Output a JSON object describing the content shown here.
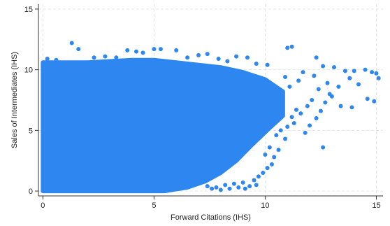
{
  "chart_data": {
    "type": "scatter",
    "xlabel": "Forward Citations (IHS)",
    "ylabel": "Sales of Intermediates (IHS)",
    "xlim": [
      -0.2,
      15.3
    ],
    "ylim": [
      -0.4,
      15.4
    ],
    "x_ticks": [
      0,
      5,
      10,
      15
    ],
    "y_ticks": [
      0,
      5,
      10,
      15
    ],
    "x_tick_labels": [
      "0",
      "5",
      "10",
      "15"
    ],
    "y_tick_labels": [
      "0",
      "5",
      "10",
      "15"
    ],
    "grid": true,
    "marker_color": "#2E86F0",
    "dense_region": {
      "description": "",
      "upper_envelope": [
        [
          0,
          10.6
        ],
        [
          1,
          10.6
        ],
        [
          2,
          10.6
        ],
        [
          3,
          10.7
        ],
        [
          4,
          10.8
        ],
        [
          5,
          10.8
        ],
        [
          6,
          10.6
        ],
        [
          7,
          10.4
        ],
        [
          8,
          10.2
        ],
        [
          9,
          9.8
        ],
        [
          10,
          9.2
        ],
        [
          10.8,
          8.2
        ]
      ],
      "lower_envelope": [
        [
          0,
          0
        ],
        [
          4,
          0
        ],
        [
          5.5,
          0
        ],
        [
          6.5,
          0.3
        ],
        [
          7.3,
          0.8
        ],
        [
          8,
          1.5
        ],
        [
          8.7,
          2.5
        ],
        [
          9.4,
          3.8
        ],
        [
          10.2,
          5.2
        ],
        [
          10.8,
          6.2
        ],
        [
          10.8,
          8.2
        ]
      ]
    },
    "points": [
      [
        1.3,
        12.2
      ],
      [
        1.6,
        11.7
      ],
      [
        3.8,
        11.6
      ],
      [
        4.2,
        11.5
      ],
      [
        4.5,
        11.4
      ],
      [
        5.0,
        11.7
      ],
      [
        5.3,
        11.7
      ],
      [
        6.0,
        11.6
      ],
      [
        7.0,
        11.2
      ],
      [
        7.4,
        11.3
      ],
      [
        8.7,
        11.1
      ],
      [
        9.2,
        11.0
      ],
      [
        11.0,
        11.8
      ],
      [
        11.2,
        11.9
      ],
      [
        12.3,
        11.0
      ],
      [
        12.6,
        10.3
      ],
      [
        13.1,
        10.2
      ],
      [
        13.6,
        9.9
      ],
      [
        14.0,
        9.9
      ],
      [
        14.5,
        10.0
      ],
      [
        14.8,
        9.8
      ],
      [
        15.0,
        9.7
      ],
      [
        15.1,
        9.3
      ],
      [
        14.9,
        7.4
      ],
      [
        14.6,
        7.6
      ],
      [
        13.3,
        8.6
      ],
      [
        12.9,
        8.0
      ],
      [
        12.7,
        7.3
      ],
      [
        12.5,
        6.6
      ],
      [
        12.3,
        6.0
      ],
      [
        12.0,
        5.4
      ],
      [
        11.8,
        4.8
      ],
      [
        12.6,
        3.6
      ],
      [
        11.4,
        6.7
      ],
      [
        11.2,
        6.1
      ],
      [
        11.0,
        5.3
      ],
      [
        10.9,
        4.3
      ],
      [
        10.6,
        3.4
      ],
      [
        10.4,
        2.8
      ],
      [
        10.3,
        2.2
      ],
      [
        10.1,
        1.9
      ],
      [
        9.9,
        1.5
      ],
      [
        9.7,
        1.2
      ],
      [
        9.5,
        0.9
      ],
      [
        9.6,
        0.5
      ],
      [
        9.3,
        0.4
      ],
      [
        9.1,
        0.2
      ],
      [
        9.0,
        0.7
      ],
      [
        8.8,
        0.3
      ],
      [
        8.6,
        0.6
      ],
      [
        8.4,
        0.2
      ],
      [
        8.2,
        0.5
      ],
      [
        8.0,
        0.1
      ],
      [
        7.8,
        0.3
      ],
      [
        7.6,
        0.2
      ],
      [
        7.4,
        0.4
      ],
      [
        10.0,
        3.0
      ],
      [
        10.2,
        3.6
      ],
      [
        10.5,
        4.6
      ],
      [
        10.7,
        5.0
      ],
      [
        11.3,
        5.6
      ],
      [
        11.6,
        6.4
      ],
      [
        11.9,
        7.0
      ],
      [
        12.1,
        7.5
      ],
      [
        12.4,
        8.4
      ],
      [
        12.8,
        8.9
      ],
      [
        13.0,
        7.8
      ],
      [
        13.4,
        7.0
      ],
      [
        13.8,
        9.3
      ],
      [
        14.2,
        8.8
      ],
      [
        13.9,
        6.9
      ],
      [
        12.2,
        9.5
      ],
      [
        11.7,
        9.8
      ],
      [
        11.5,
        9.1
      ],
      [
        11.1,
        8.6
      ],
      [
        10.9,
        9.4
      ],
      [
        0.2,
        10.9
      ],
      [
        0.6,
        10.8
      ],
      [
        2.3,
        11.0
      ],
      [
        2.8,
        11.1
      ],
      [
        3.3,
        11.0
      ],
      [
        6.5,
        11.0
      ],
      [
        7.9,
        10.9
      ],
      [
        8.3,
        10.7
      ],
      [
        9.6,
        10.5
      ],
      [
        10.1,
        10.4
      ]
    ]
  }
}
